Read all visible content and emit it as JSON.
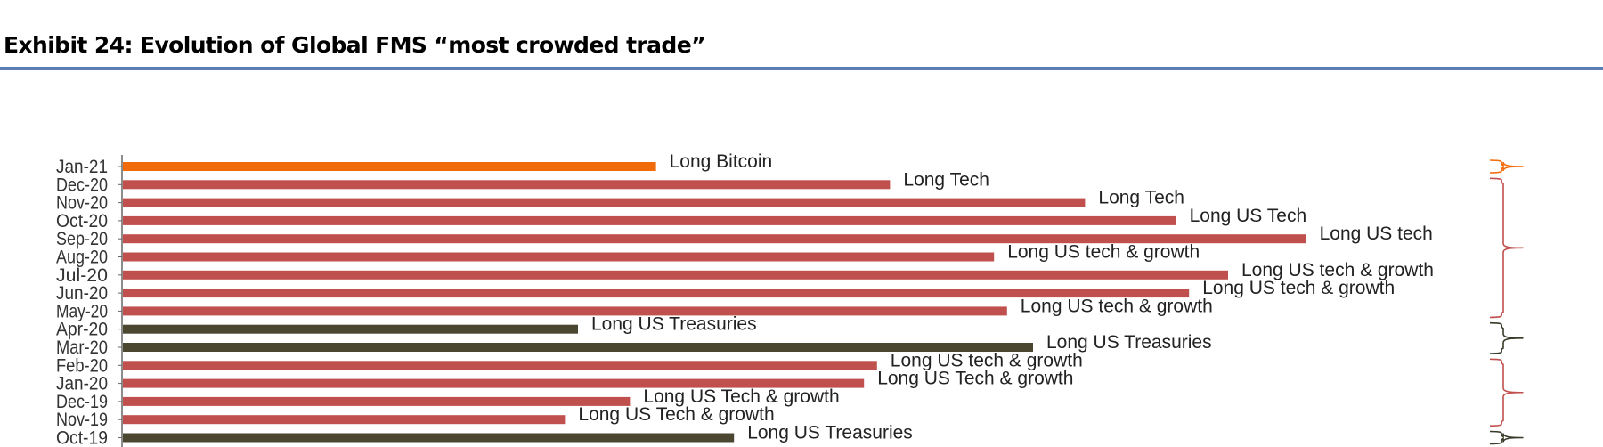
{
  "header": {
    "title": "Exhibit 24: Evolution of Global FMS “most crowded trade”"
  },
  "chart_data": {
    "type": "bar",
    "orientation": "horizontal",
    "title": "Exhibit 24: Evolution of Global FMS “most crowded trade”",
    "xlim": [
      0,
      100
    ],
    "grid": false,
    "legend": "none",
    "categories": [
      "Jan-21",
      "Dec-20",
      "Nov-20",
      "Oct-20",
      "Sep-20",
      "Aug-20",
      "Jul-20",
      "Jun-20",
      "May-20",
      "Apr-20",
      "Mar-20",
      "Feb-20",
      "Jan-20",
      "Dec-19",
      "Nov-19",
      "Oct-19"
    ],
    "values": [
      41,
      59,
      74,
      81,
      91,
      67,
      85,
      82,
      68,
      35,
      70,
      58,
      57,
      39,
      34,
      47
    ],
    "labels": [
      "Long Bitcoin",
      "Long Tech",
      "Long Tech",
      "Long US Tech",
      "Long US tech",
      "Long US tech & growth",
      "Long US tech & growth",
      "Long US tech & growth",
      "Long US tech & growth",
      "Long US Treasuries",
      "Long US Treasuries",
      "Long US tech & growth",
      "Long US Tech & growth",
      "Long US Tech & growth",
      "Long US Tech & growth",
      "Long US Treasuries"
    ],
    "colors": [
      "#f26b0a",
      "#c0504d",
      "#c0504d",
      "#c0504d",
      "#c0504d",
      "#c0504d",
      "#c0504d",
      "#c0504d",
      "#c0504d",
      "#4a4630",
      "#4a4630",
      "#c0504d",
      "#c0504d",
      "#c0504d",
      "#c0504d",
      "#4a4630"
    ],
    "brackets": [
      {
        "from": 0,
        "to": 0,
        "color": "#f26b0a"
      },
      {
        "from": 1,
        "to": 8,
        "color": "#c0504d"
      },
      {
        "from": 9,
        "to": 10,
        "color": "#3a3a2a"
      },
      {
        "from": 11,
        "to": 14,
        "color": "#c0504d"
      },
      {
        "from": 15,
        "to": 15,
        "color": "#3a3a2a"
      }
    ]
  }
}
